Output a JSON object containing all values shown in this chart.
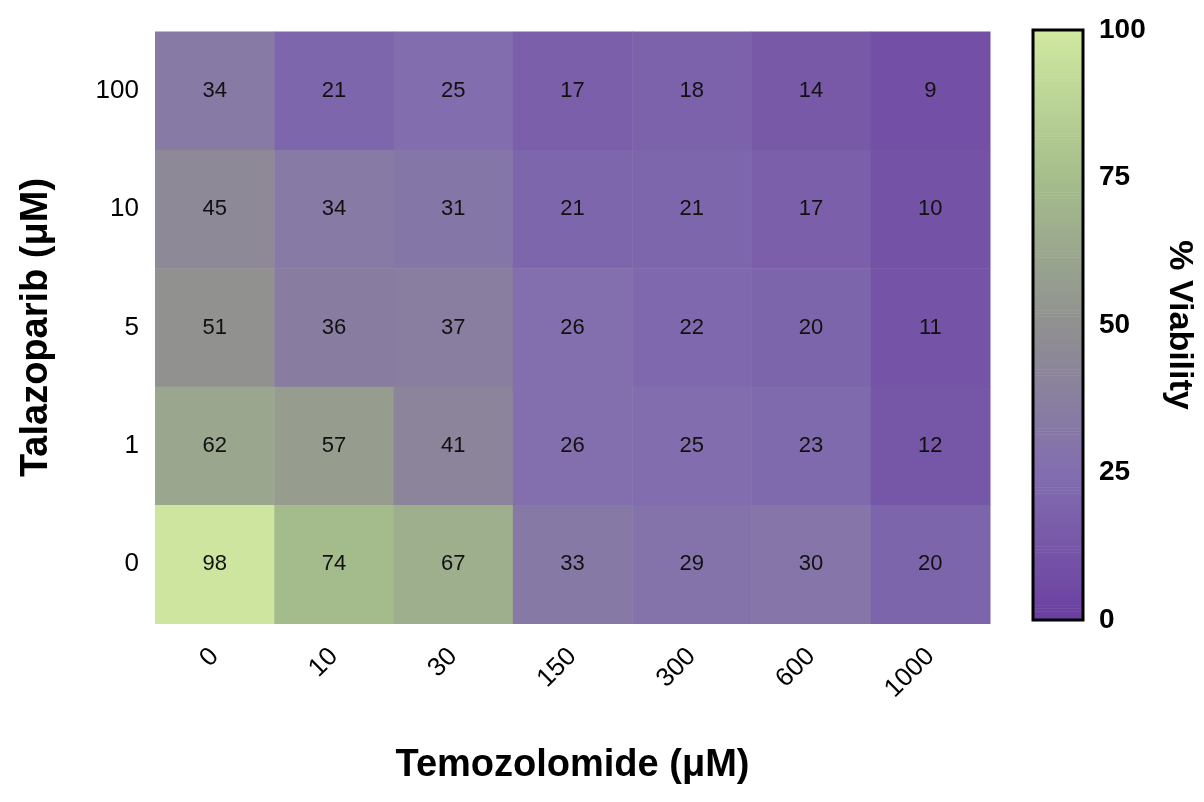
{
  "chart_data": {
    "type": "heatmap",
    "xlabel": "Temozolomide (μM)",
    "ylabel": "Talazoparib (μM)",
    "clabel": "% Viability",
    "categories": [
      "0",
      "10",
      "30",
      "150",
      "300",
      "600",
      "1000"
    ],
    "y_categories": [
      "100",
      "10",
      "5",
      "1",
      "0"
    ],
    "cells": [
      [
        34,
        21,
        25,
        17,
        18,
        14,
        9
      ],
      [
        45,
        34,
        31,
        21,
        21,
        17,
        10
      ],
      [
        51,
        36,
        37,
        26,
        22,
        20,
        11
      ],
      [
        62,
        57,
        41,
        26,
        25,
        23,
        12
      ],
      [
        98,
        74,
        67,
        33,
        29,
        30,
        20
      ]
    ],
    "data_labels": true,
    "clim": [
      0,
      100
    ],
    "cticks": [
      0,
      25,
      50,
      75,
      100
    ]
  }
}
